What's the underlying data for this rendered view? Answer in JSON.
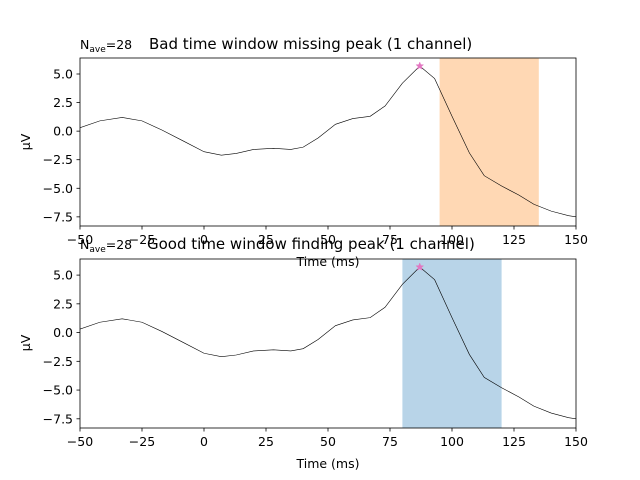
{
  "chart_data": [
    {
      "type": "line",
      "nave_prefix": "N",
      "nave_sub": "ave",
      "nave_value": "=28",
      "title": "Bad time window missing peak (1 channel)",
      "xlabel": "Time (ms)",
      "ylabel": "µV",
      "xlim": [
        -50,
        150
      ],
      "ylim": [
        -8.3,
        6.4
      ],
      "xticks": [
        -50,
        -25,
        0,
        25,
        50,
        75,
        100,
        125,
        150
      ],
      "xtick_labels": [
        "−50",
        "−25",
        "0",
        "25",
        "50",
        "75",
        "100",
        "125",
        "150"
      ],
      "yticks": [
        -7.5,
        -5.0,
        -2.5,
        0.0,
        2.5,
        5.0
      ],
      "ytick_labels": [
        "−7.5",
        "−5.0",
        "−2.5",
        "0.0",
        "2.5",
        "5.0"
      ],
      "window": [
        95,
        135
      ],
      "window_color": "#ffd8b4",
      "peak": {
        "x": 87,
        "y": 5.7,
        "color": "#e377c2"
      },
      "line_color": "#000000",
      "x": [
        -50,
        -42,
        -33,
        -25,
        -17,
        -8,
        0,
        7,
        13,
        20,
        28,
        35,
        40,
        46,
        53,
        60,
        67,
        73,
        80,
        87,
        93,
        100,
        107,
        113,
        120,
        127,
        133,
        140,
        147,
        150
      ],
      "y": [
        0.3,
        0.9,
        1.2,
        0.9,
        0.1,
        -0.9,
        -1.8,
        -2.1,
        -1.95,
        -1.6,
        -1.5,
        -1.6,
        -1.4,
        -0.6,
        0.6,
        1.1,
        1.3,
        2.2,
        4.2,
        5.7,
        4.6,
        1.3,
        -1.9,
        -3.9,
        -4.8,
        -5.6,
        -6.4,
        -7.0,
        -7.4,
        -7.5
      ]
    },
    {
      "type": "line",
      "nave_prefix": "N",
      "nave_sub": "ave",
      "nave_value": "=28",
      "title": "Good time window finding peak (1 channel)",
      "xlabel": "Time (ms)",
      "ylabel": "µV",
      "xlim": [
        -50,
        150
      ],
      "ylim": [
        -8.3,
        6.4
      ],
      "xticks": [
        -50,
        -25,
        0,
        25,
        50,
        75,
        100,
        125,
        150
      ],
      "xtick_labels": [
        "−50",
        "−25",
        "0",
        "25",
        "50",
        "75",
        "100",
        "125",
        "150"
      ],
      "yticks": [
        -7.5,
        -5.0,
        -2.5,
        0.0,
        2.5,
        5.0
      ],
      "ytick_labels": [
        "−7.5",
        "−5.0",
        "−2.5",
        "0.0",
        "2.5",
        "5.0"
      ],
      "window": [
        80,
        120
      ],
      "window_color": "#b8d4e8",
      "peak": {
        "x": 87,
        "y": 5.7,
        "color": "#e377c2"
      },
      "line_color": "#000000",
      "x": [
        -50,
        -42,
        -33,
        -25,
        -17,
        -8,
        0,
        7,
        13,
        20,
        28,
        35,
        40,
        46,
        53,
        60,
        67,
        73,
        80,
        87,
        93,
        100,
        107,
        113,
        120,
        127,
        133,
        140,
        147,
        150
      ],
      "y": [
        0.3,
        0.9,
        1.2,
        0.9,
        0.1,
        -0.9,
        -1.8,
        -2.1,
        -1.95,
        -1.6,
        -1.5,
        -1.6,
        -1.4,
        -0.6,
        0.6,
        1.1,
        1.3,
        2.2,
        4.2,
        5.7,
        4.6,
        1.3,
        -1.9,
        -3.9,
        -4.8,
        -5.6,
        -6.4,
        -7.0,
        -7.4,
        -7.5
      ]
    }
  ]
}
